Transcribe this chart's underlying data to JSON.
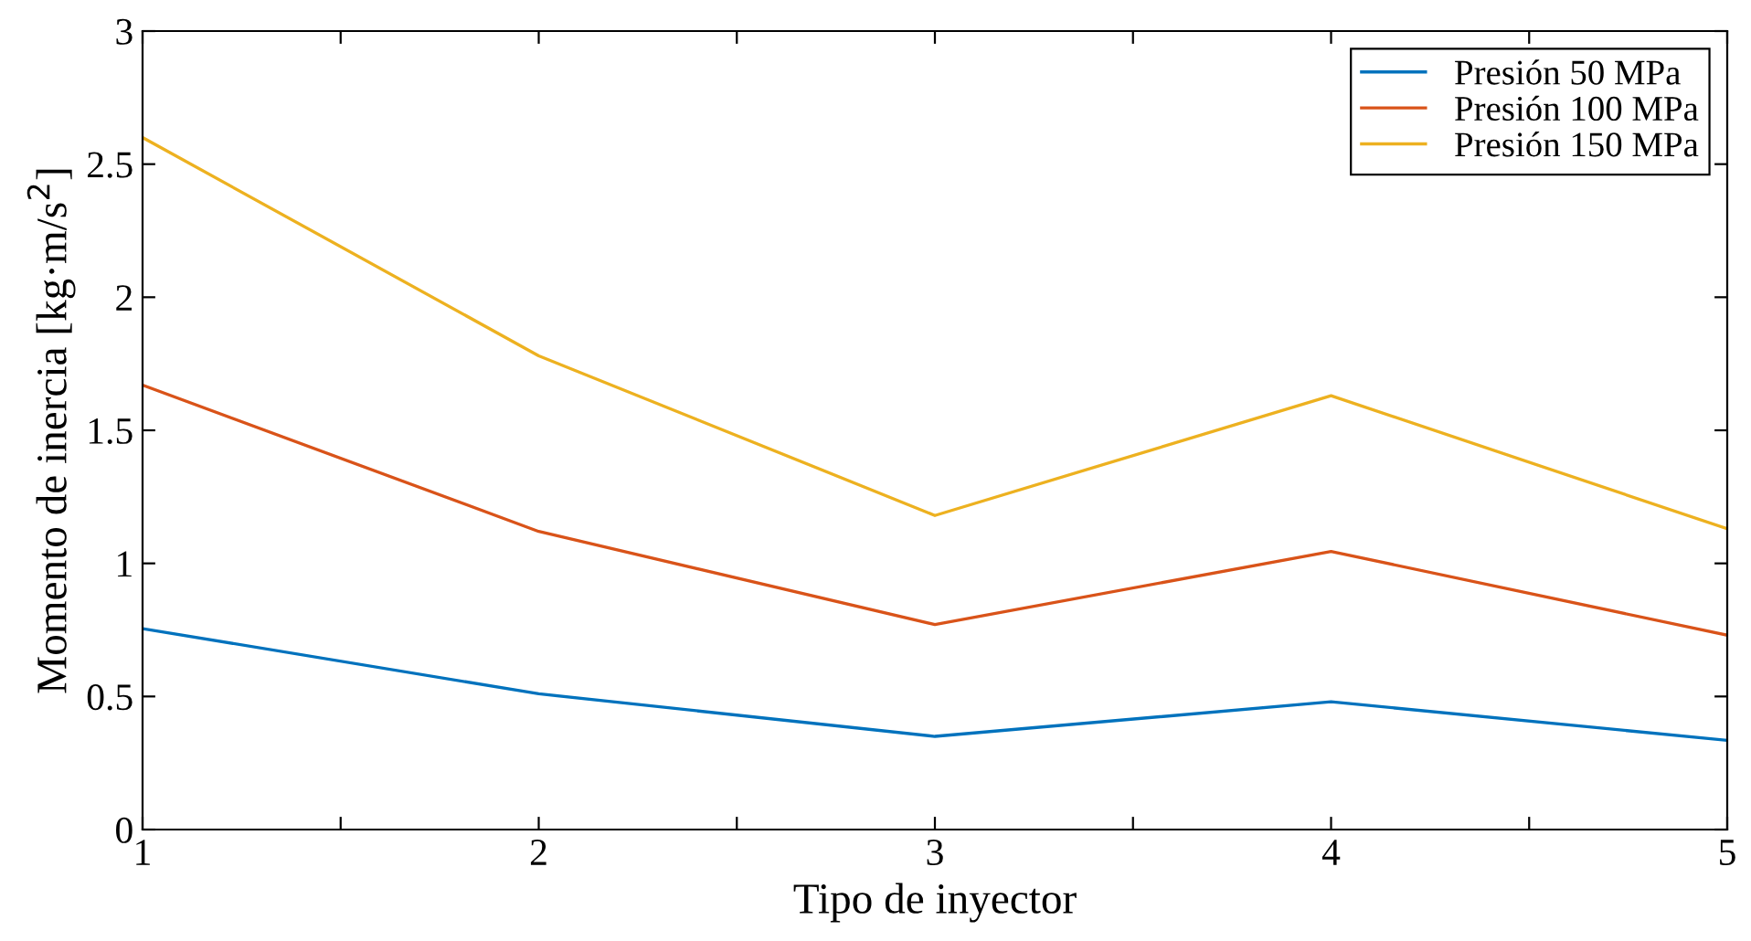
{
  "chart_data": {
    "type": "line",
    "xlabel": "Tipo de inyector",
    "ylabel": "Momento de inercia [kg·m/s$^{2}$]",
    "x": [
      1,
      2,
      3,
      4,
      5
    ],
    "series": [
      {
        "name": "Presión 50 MPa",
        "color": "#0072bd",
        "values": [
          0.755,
          0.51,
          0.35,
          0.48,
          0.335
        ]
      },
      {
        "name": "Presión 100 MPa",
        "color": "#d95319",
        "values": [
          1.67,
          1.12,
          0.77,
          1.045,
          0.73
        ]
      },
      {
        "name": "Presión 150 MPa",
        "color": "#edb120",
        "values": [
          2.6,
          1.78,
          1.18,
          1.63,
          1.13
        ]
      }
    ],
    "xlim": [
      1,
      5
    ],
    "ylim": [
      0,
      3
    ],
    "xticks": [
      1,
      {
        "value": 1.5,
        "label": null
      },
      2,
      {
        "value": 2.5,
        "label": null
      },
      3,
      {
        "value": 3.5,
        "label": null
      },
      4,
      {
        "value": 4.5,
        "label": null
      },
      5
    ],
    "yticks": [
      0,
      0.5,
      1,
      1.5,
      2,
      2.5,
      3
    ],
    "legend": "top right",
    "grid": false,
    "marker": "none",
    "line_style": "solid"
  }
}
